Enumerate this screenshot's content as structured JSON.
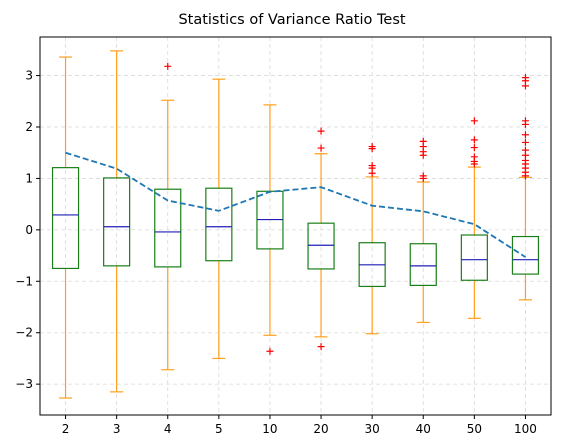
{
  "chart_data": {
    "type": "boxplot",
    "title": "Statistics of Variance Ratio Test",
    "xlabel": "",
    "ylabel": "",
    "categories": [
      "2",
      "3",
      "4",
      "5",
      "10",
      "20",
      "30",
      "40",
      "50",
      "100"
    ],
    "ylim": [
      -3.6,
      3.75
    ],
    "yticks": [
      -3,
      -2,
      -1,
      0,
      1,
      2,
      3
    ],
    "grid": true,
    "boxes": [
      {
        "category": "2",
        "whisker_low": -3.27,
        "q1": -0.75,
        "median": 0.29,
        "q3": 1.21,
        "whisker_high": 3.36,
        "outliers": []
      },
      {
        "category": "3",
        "whisker_low": -3.15,
        "q1": -0.7,
        "median": 0.06,
        "q3": 1.01,
        "whisker_high": 3.48,
        "outliers": []
      },
      {
        "category": "4",
        "whisker_low": -2.72,
        "q1": -0.72,
        "median": -0.04,
        "q3": 0.79,
        "whisker_high": 2.52,
        "outliers": [
          3.18
        ]
      },
      {
        "category": "5",
        "whisker_low": -2.5,
        "q1": -0.6,
        "median": 0.06,
        "q3": 0.81,
        "whisker_high": 2.93,
        "outliers": []
      },
      {
        "category": "10",
        "whisker_low": -2.05,
        "q1": -0.37,
        "median": 0.2,
        "q3": 0.75,
        "whisker_high": 2.43,
        "outliers": [
          -2.36
        ]
      },
      {
        "category": "20",
        "whisker_low": -2.08,
        "q1": -0.76,
        "median": -0.3,
        "q3": 0.13,
        "whisker_high": 1.48,
        "outliers": [
          1.59,
          1.92,
          -2.27
        ]
      },
      {
        "category": "30",
        "whisker_low": -2.02,
        "q1": -1.1,
        "median": -0.68,
        "q3": -0.25,
        "whisker_high": 1.03,
        "outliers": [
          1.1,
          1.2,
          1.25,
          1.58,
          1.62
        ]
      },
      {
        "category": "40",
        "whisker_low": -1.8,
        "q1": -1.08,
        "median": -0.7,
        "q3": -0.27,
        "whisker_high": 0.93,
        "outliers": [
          1.0,
          1.05,
          1.45,
          1.52,
          1.62,
          1.72
        ]
      },
      {
        "category": "50",
        "whisker_low": -1.72,
        "q1": -0.98,
        "median": -0.58,
        "q3": -0.1,
        "whisker_high": 1.22,
        "outliers": [
          1.28,
          1.33,
          1.42,
          1.6,
          1.75,
          2.12
        ]
      },
      {
        "category": "100",
        "whisker_low": -1.36,
        "q1": -0.86,
        "median": -0.58,
        "q3": -0.13,
        "whisker_high": 1.02,
        "outliers": [
          1.05,
          1.12,
          1.2,
          1.28,
          1.35,
          1.45,
          1.55,
          1.7,
          1.85,
          2.05,
          2.12,
          2.8,
          2.9,
          2.96
        ]
      }
    ],
    "trend_line": {
      "style": "dashed",
      "values": [
        1.5,
        1.19,
        0.57,
        0.37,
        0.74,
        0.83,
        0.47,
        0.36,
        0.11,
        -0.53
      ]
    },
    "colors": {
      "box": "#1a7f1a",
      "median": "#1f1fb4",
      "whisker": "#ff9f1c",
      "outlier": "#ff0000",
      "trend": "#1f77b4",
      "grid": "#d9d9d9"
    }
  }
}
